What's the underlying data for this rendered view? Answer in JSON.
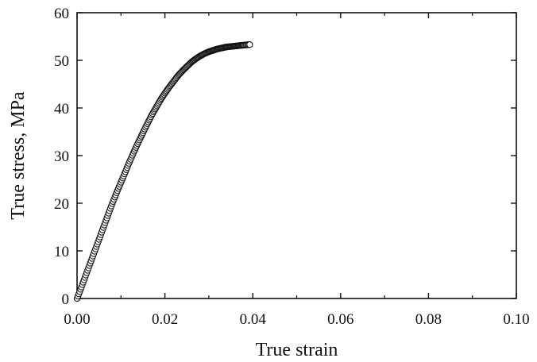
{
  "chart_data": {
    "type": "scatter",
    "title": "",
    "xlabel": "True strain",
    "ylabel": "True stress, MPa",
    "xlim": [
      0.0,
      0.1
    ],
    "ylim": [
      0,
      60
    ],
    "x_ticks": [
      "0.00",
      "0.02",
      "0.04",
      "0.06",
      "0.08",
      "0.10"
    ],
    "y_ticks": [
      "0",
      "10",
      "20",
      "30",
      "40",
      "50",
      "60"
    ],
    "grid": false,
    "legend": "none",
    "marker": "open-circle",
    "series": [
      {
        "points": [
          [
            0.0,
            0.0
          ],
          [
            0.001,
            2.4
          ],
          [
            0.002,
            4.9
          ],
          [
            0.003,
            7.4
          ],
          [
            0.004,
            9.9
          ],
          [
            0.005,
            12.4
          ],
          [
            0.006,
            14.9
          ],
          [
            0.007,
            17.4
          ],
          [
            0.008,
            19.9
          ],
          [
            0.009,
            22.2
          ],
          [
            0.01,
            24.4
          ],
          [
            0.011,
            26.6
          ],
          [
            0.012,
            28.8
          ],
          [
            0.013,
            30.9
          ],
          [
            0.014,
            32.9
          ],
          [
            0.015,
            34.8
          ],
          [
            0.016,
            36.7
          ],
          [
            0.017,
            38.5
          ],
          [
            0.018,
            40.1
          ],
          [
            0.019,
            41.7
          ],
          [
            0.02,
            43.1
          ],
          [
            0.021,
            44.4
          ],
          [
            0.022,
            45.6
          ],
          [
            0.023,
            46.8
          ],
          [
            0.024,
            47.8
          ],
          [
            0.025,
            48.7
          ],
          [
            0.026,
            49.6
          ],
          [
            0.027,
            50.3
          ],
          [
            0.028,
            50.9
          ],
          [
            0.029,
            51.4
          ],
          [
            0.03,
            51.8
          ],
          [
            0.031,
            52.1
          ],
          [
            0.032,
            52.4
          ],
          [
            0.033,
            52.6
          ],
          [
            0.034,
            52.8
          ],
          [
            0.035,
            52.9
          ],
          [
            0.036,
            53.0
          ],
          [
            0.037,
            53.1
          ],
          [
            0.038,
            53.2
          ],
          [
            0.0393,
            53.3
          ]
        ]
      }
    ]
  }
}
